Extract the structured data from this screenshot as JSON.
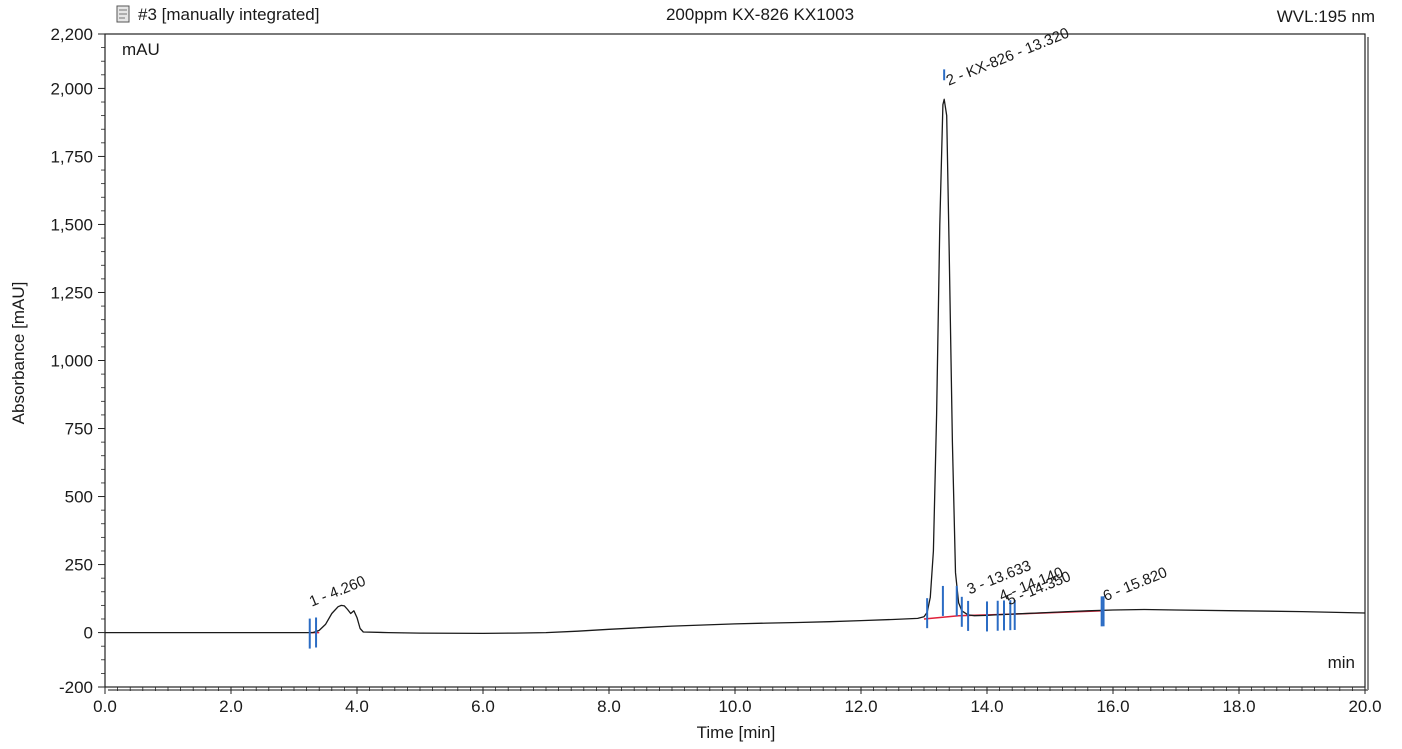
{
  "header": {
    "run_label": "#3 [manually integrated]",
    "sample_title": "200ppm KX-826 KX1003",
    "wavelength": "WVL:195 nm",
    "icon": "chromatogram-file-icon"
  },
  "chart_data": {
    "type": "line",
    "title": "200ppm KX-826 KX1003",
    "xlabel": "Time [min]",
    "ylabel": "Absorbance [mAU]",
    "y_unit": "mAU",
    "x_unit": "min",
    "xlim": [
      0.0,
      20.0
    ],
    "ylim": [
      -200,
      2200
    ],
    "x_ticks": [
      "0.0",
      "2.0",
      "4.0",
      "6.0",
      "8.0",
      "10.0",
      "12.0",
      "14.0",
      "16.0",
      "18.0",
      "20.0"
    ],
    "x_tick_values": [
      0,
      2,
      4,
      6,
      8,
      10,
      12,
      14,
      16,
      18,
      20
    ],
    "y_ticks": [
      "-200",
      "0",
      "250",
      "500",
      "750",
      "1,000",
      "1,250",
      "1,500",
      "1,750",
      "2,000",
      "2,200"
    ],
    "y_tick_values": [
      -200,
      0,
      250,
      500,
      750,
      1000,
      1250,
      1500,
      1750,
      2000,
      2200
    ],
    "grid": false,
    "series": [
      {
        "color": "#1a1a1a",
        "points": [
          [
            0.0,
            0
          ],
          [
            1.0,
            0
          ],
          [
            2.0,
            0
          ],
          [
            3.0,
            0
          ],
          [
            3.3,
            0
          ],
          [
            3.4,
            8
          ],
          [
            3.5,
            30
          ],
          [
            3.6,
            70
          ],
          [
            3.7,
            95
          ],
          [
            3.75,
            100
          ],
          [
            3.8,
            98
          ],
          [
            3.85,
            85
          ],
          [
            3.9,
            70
          ],
          [
            3.95,
            80
          ],
          [
            4.0,
            55
          ],
          [
            4.05,
            15
          ],
          [
            4.1,
            2
          ],
          [
            4.5,
            0
          ],
          [
            5.0,
            -2
          ],
          [
            6.0,
            -3
          ],
          [
            6.5,
            -2
          ],
          [
            7.0,
            0
          ],
          [
            7.5,
            5
          ],
          [
            8.0,
            12
          ],
          [
            8.5,
            18
          ],
          [
            9.0,
            24
          ],
          [
            9.5,
            28
          ],
          [
            10.0,
            32
          ],
          [
            10.5,
            35
          ],
          [
            11.0,
            37
          ],
          [
            11.5,
            40
          ],
          [
            12.0,
            44
          ],
          [
            12.5,
            48
          ],
          [
            12.9,
            52
          ],
          [
            13.0,
            58
          ],
          [
            13.05,
            75
          ],
          [
            13.1,
            130
          ],
          [
            13.15,
            300
          ],
          [
            13.2,
            800
          ],
          [
            13.25,
            1500
          ],
          [
            13.3,
            1940
          ],
          [
            13.32,
            1960
          ],
          [
            13.36,
            1900
          ],
          [
            13.4,
            1400
          ],
          [
            13.45,
            700
          ],
          [
            13.5,
            220
          ],
          [
            13.55,
            110
          ],
          [
            13.6,
            80
          ],
          [
            13.7,
            65
          ],
          [
            13.8,
            62
          ],
          [
            14.0,
            63
          ],
          [
            14.2,
            66
          ],
          [
            14.4,
            68
          ],
          [
            14.8,
            72
          ],
          [
            15.2,
            76
          ],
          [
            15.6,
            80
          ],
          [
            16.0,
            83
          ],
          [
            16.5,
            85
          ],
          [
            17.0,
            83
          ],
          [
            18.0,
            80
          ],
          [
            19.0,
            77
          ],
          [
            20.0,
            72
          ]
        ]
      }
    ],
    "baseline": {
      "color": "#e0203a",
      "segments": [
        [
          [
            3.25,
            0
          ],
          [
            3.4,
            0
          ]
        ],
        [
          [
            13.0,
            50
          ],
          [
            13.55,
            62
          ],
          [
            14.4,
            68
          ],
          [
            15.85,
            80
          ]
        ]
      ]
    },
    "peaks": [
      {
        "label": "1 - 4.260",
        "x": 3.25,
        "y": 95
      },
      {
        "label": "2 - KX-826 - 13.320",
        "x": 13.36,
        "y": 2010
      },
      {
        "label": "3 - 13.633",
        "x": 13.69,
        "y": 140
      },
      {
        "label": "4 - 14.140",
        "x": 14.2,
        "y": 115
      },
      {
        "label": "5 - 14.350",
        "x": 14.32,
        "y": 100
      },
      {
        "label": "6 - 15.820",
        "x": 15.85,
        "y": 115
      }
    ],
    "markers": {
      "color": "#2b6cc4",
      "x_values": [
        3.25,
        3.35,
        13.05,
        13.3,
        13.52,
        13.6,
        13.7,
        14.0,
        14.17,
        14.27,
        14.37,
        14.44,
        15.82,
        15.85
      ]
    },
    "line_color": "#1a1a1a"
  }
}
